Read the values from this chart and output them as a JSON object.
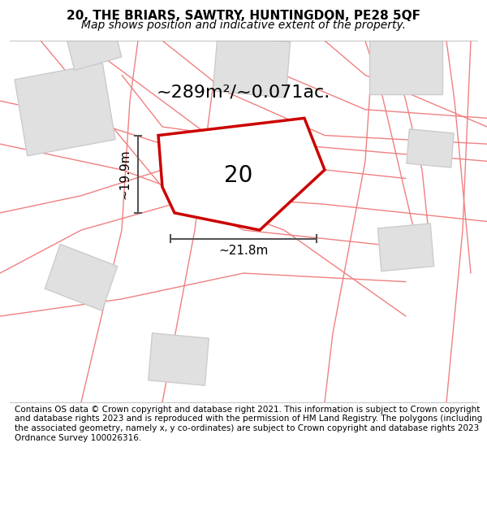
{
  "title_line1": "20, THE BRIARS, SAWTRY, HUNTINGDON, PE28 5QF",
  "title_line2": "Map shows position and indicative extent of the property.",
  "footer_text": "Contains OS data © Crown copyright and database right 2021. This information is subject to Crown copyright and database rights 2023 and is reproduced with the permission of HM Land Registry. The polygons (including the associated geometry, namely x, y co-ordinates) are subject to Crown copyright and database rights 2023 Ordnance Survey 100026316.",
  "area_label": "~289m²/~0.071ac.",
  "number_label": "20",
  "width_label": "~21.8m",
  "height_label": "~19.9m",
  "background_color": "#ffffff",
  "map_bg_color": "#f5f5f5",
  "road_color": "#f5c0c0",
  "road_stroke": "#f08080",
  "plot_fill": "#ffffff",
  "plot_stroke": "#cc0000",
  "building_fill": "#e0e0e0",
  "building_stroke": "#cccccc",
  "dim_line_color": "#555555",
  "title_fontsize": 11,
  "subtitle_fontsize": 10,
  "area_fontsize": 16,
  "number_fontsize": 20,
  "dim_fontsize": 11,
  "footer_fontsize": 7.5
}
